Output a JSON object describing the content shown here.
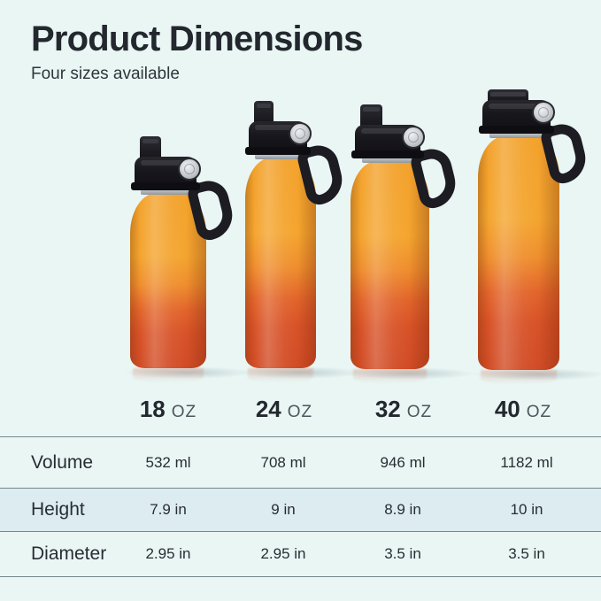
{
  "page": {
    "title": "Product Dimensions",
    "subtitle": "Four sizes available"
  },
  "sizes": [
    {
      "value": "18",
      "unit": "OZ"
    },
    {
      "value": "24",
      "unit": "OZ"
    },
    {
      "value": "32",
      "unit": "OZ"
    },
    {
      "value": "40",
      "unit": "OZ"
    }
  ],
  "table": {
    "rows": [
      {
        "label": "Volume",
        "values": [
          "532 ml",
          "708 ml",
          "946 ml",
          "1182 ml"
        ]
      },
      {
        "label": "Height",
        "values": [
          "7.9 in",
          "9 in",
          "8.9 in",
          "10 in"
        ]
      },
      {
        "label": "Diameter",
        "values": [
          "2.95 in",
          "2.95 in",
          "3.5 in",
          "3.5 in"
        ]
      }
    ]
  },
  "colors": {
    "background": "#e9f6f4",
    "row_highlight": "#dcecf1",
    "divider": "#73878e",
    "title_text": "#23272e",
    "bottle_orange": "#f4a52f",
    "bottle_red": "#d14c26",
    "cap_black": "#17171c"
  }
}
